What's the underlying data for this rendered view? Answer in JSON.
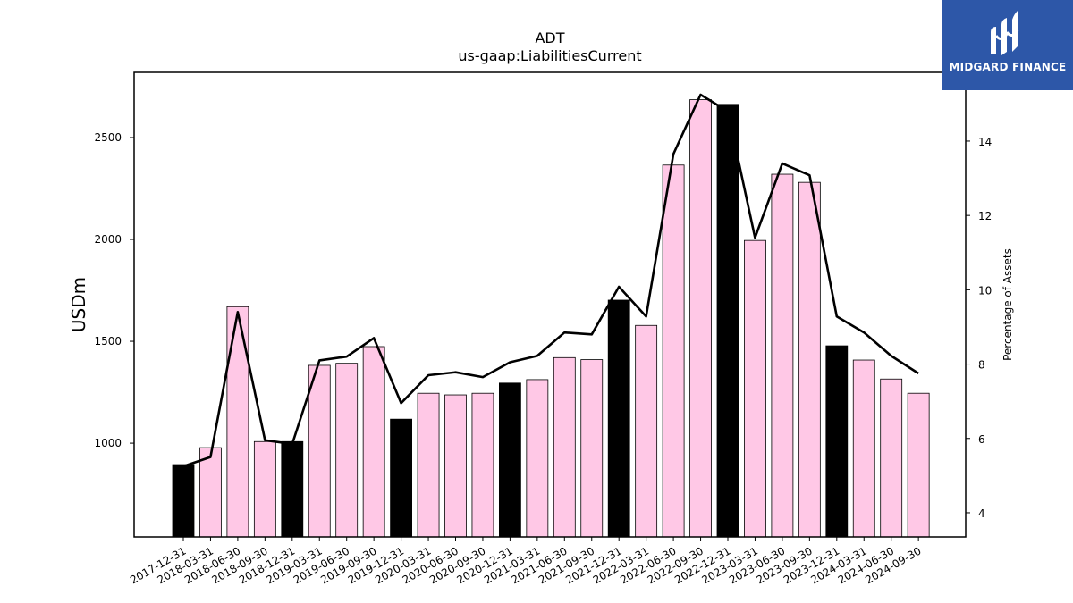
{
  "chart_data": {
    "type": "bar",
    "title": "ADT",
    "subtitle": "us-gaap:LiabilitiesCurrent",
    "ylabel": "USDm",
    "y2label": "Percentage of Assets",
    "ylim": [
      540,
      2820
    ],
    "y2lim": [
      3.35,
      15.85
    ],
    "yticks": [
      1000,
      1500,
      2000,
      2500
    ],
    "y2ticks": [
      4,
      6,
      8,
      10,
      12,
      14
    ],
    "categories": [
      "2017-12-31",
      "2018-03-31",
      "2018-06-30",
      "2018-09-30",
      "2018-12-31",
      "2019-03-31",
      "2019-06-30",
      "2019-09-30",
      "2019-12-31",
      "2020-03-31",
      "2020-06-30",
      "2020-09-30",
      "2020-12-31",
      "2021-03-31",
      "2021-06-30",
      "2021-09-30",
      "2021-12-31",
      "2022-03-31",
      "2022-06-30",
      "2022-09-30",
      "2022-12-31",
      "2023-03-31",
      "2023-06-30",
      "2023-09-30",
      "2023-12-31",
      "2024-03-31",
      "2024-06-30",
      "2024-09-30"
    ],
    "series": [
      {
        "values": [
          895,
          978,
          1670,
          1008,
          1008,
          1382,
          1392,
          1474,
          1118,
          1245,
          1237,
          1245,
          1295,
          1312,
          1420,
          1410,
          1702,
          1578,
          2365,
          2686,
          2663,
          1995,
          2320,
          2280,
          1478,
          1408,
          1315,
          1245
        ],
        "colors": [
          "#000000",
          "#ffc8e6",
          "#ffc8e6",
          "#ffc8e6",
          "#000000",
          "#ffc8e6",
          "#ffc8e6",
          "#ffc8e6",
          "#000000",
          "#ffc8e6",
          "#ffc8e6",
          "#ffc8e6",
          "#000000",
          "#ffc8e6",
          "#ffc8e6",
          "#ffc8e6",
          "#000000",
          "#ffc8e6",
          "#ffc8e6",
          "#ffc8e6",
          "#000000",
          "#ffc8e6",
          "#ffc8e6",
          "#ffc8e6",
          "#000000",
          "#ffc8e6",
          "#ffc8e6",
          "#ffc8e6"
        ]
      },
      {
        "type": "line",
        "axis": "right",
        "color": "#000000",
        "values": [
          5.25,
          5.5,
          9.4,
          5.95,
          5.85,
          8.1,
          8.2,
          8.7,
          6.95,
          7.7,
          7.78,
          7.65,
          8.05,
          8.22,
          8.85,
          8.8,
          10.08,
          9.28,
          13.65,
          15.25,
          14.8,
          11.4,
          13.4,
          13.08,
          9.28,
          8.85,
          8.22,
          7.75
        ]
      }
    ],
    "grid": false,
    "legend": "none"
  },
  "logo": {
    "text": "MIDGARD FINANCE",
    "bg": "#2d57a8"
  }
}
